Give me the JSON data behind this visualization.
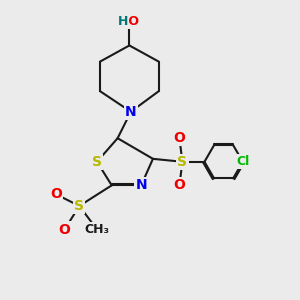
{
  "bg_color": "#ebebeb",
  "bond_color": "#1a1a1a",
  "bond_width": 1.5,
  "atom_colors": {
    "S": "#b8b800",
    "N": "#0000ee",
    "O": "#ee0000",
    "Cl": "#00bb00",
    "H": "#007777",
    "C": "#1a1a1a"
  },
  "atom_fontsizes": {
    "S": 10,
    "N": 10,
    "O": 10,
    "Cl": 9,
    "HO": 9,
    "C": 9
  }
}
